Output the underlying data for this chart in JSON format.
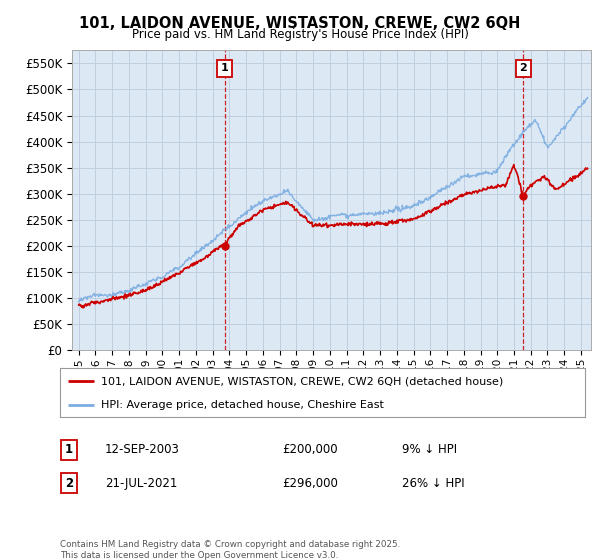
{
  "title": "101, LAIDON AVENUE, WISTASTON, CREWE, CW2 6QH",
  "subtitle": "Price paid vs. HM Land Registry's House Price Index (HPI)",
  "ylim": [
    0,
    575000
  ],
  "yticks": [
    0,
    50000,
    100000,
    150000,
    200000,
    250000,
    300000,
    350000,
    400000,
    450000,
    500000,
    550000
  ],
  "xlim_start": 1994.6,
  "xlim_end": 2025.6,
  "marker1_x": 2003.71,
  "marker1_y": 200000,
  "marker1_label": "1",
  "marker2_x": 2021.55,
  "marker2_y": 296000,
  "marker2_label": "2",
  "legend_line1": "101, LAIDON AVENUE, WISTASTON, CREWE, CW2 6QH (detached house)",
  "legend_line2": "HPI: Average price, detached house, Cheshire East",
  "table_row1": [
    "1",
    "12-SEP-2003",
    "£200,000",
    "9% ↓ HPI"
  ],
  "table_row2": [
    "2",
    "21-JUL-2021",
    "£296,000",
    "26% ↓ HPI"
  ],
  "footer": "Contains HM Land Registry data © Crown copyright and database right 2025.\nThis data is licensed under the Open Government Licence v3.0.",
  "line_color_red": "#cc0000",
  "line_color_blue": "#7aade0",
  "dashed_line_color": "#cc0000",
  "chart_bg_color": "#dde8f5",
  "background_color": "#ffffff",
  "grid_color": "#c0cfe0",
  "hpi_knots_x": [
    1995.0,
    1997.0,
    1999.0,
    2001.0,
    2003.0,
    2004.5,
    2006.0,
    2007.5,
    2009.0,
    2010.5,
    2012.0,
    2013.5,
    2015.0,
    2016.5,
    2018.0,
    2019.0,
    2020.0,
    2020.5,
    2021.5,
    2022.3,
    2023.0,
    2024.0,
    2025.3
  ],
  "hpi_knots_y": [
    95000,
    107000,
    125000,
    160000,
    210000,
    255000,
    295000,
    310000,
    255000,
    260000,
    262000,
    268000,
    280000,
    305000,
    335000,
    340000,
    345000,
    375000,
    420000,
    445000,
    390000,
    430000,
    480000
  ],
  "red_knots_x": [
    1995.0,
    1997.0,
    1999.0,
    2001.0,
    2003.71,
    2004.5,
    2006.0,
    2007.5,
    2009.0,
    2010.5,
    2012.0,
    2013.5,
    2015.0,
    2016.5,
    2018.0,
    2019.5,
    2020.5,
    2021.0,
    2021.55,
    2022.0,
    2022.8,
    2023.5,
    2024.5,
    2025.3
  ],
  "red_knots_y": [
    85000,
    96000,
    112000,
    148000,
    200000,
    235000,
    265000,
    278000,
    233000,
    235000,
    237000,
    242000,
    252000,
    275000,
    300000,
    308000,
    315000,
    355000,
    296000,
    315000,
    330000,
    310000,
    330000,
    348000
  ]
}
